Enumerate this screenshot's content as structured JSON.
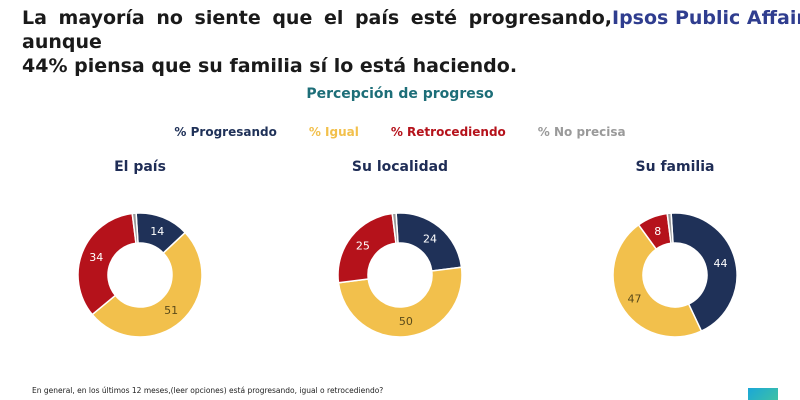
{
  "header": {
    "headline_line1": "La mayoría no siente que el país esté progresando, aunque",
    "headline_line2": "44% piensa que su familia sí lo está haciendo.",
    "brand": "Ipsos Public Affairs"
  },
  "colors": {
    "progresando": "#1f3158",
    "igual": "#f2c04c",
    "retrocediendo": "#b5121b",
    "no_precisa": "#9a9a9a",
    "title_teal": "#1d6e78"
  },
  "chart_data": {
    "type": "pie",
    "title": "Percepción de progreso",
    "legend_placement": "top",
    "series_names": [
      "% Progresando",
      "% Igual",
      "% Retrocediendo",
      "% No precisa"
    ],
    "charts": [
      {
        "title": "El país",
        "values": [
          14,
          51,
          34,
          1
        ],
        "labels": [
          "14",
          "51",
          "34",
          ""
        ]
      },
      {
        "title": "Su localidad",
        "values": [
          24,
          50,
          25,
          1
        ],
        "labels": [
          "24",
          "50",
          "25",
          ""
        ]
      },
      {
        "title": "Su familia",
        "values": [
          44,
          47,
          8,
          1
        ],
        "labels": [
          "44",
          "47",
          "8",
          ""
        ]
      }
    ]
  },
  "footnote": "En general, en los últimos 12 meses,(leer opciones) está progresando, igual o retrocediendo?"
}
